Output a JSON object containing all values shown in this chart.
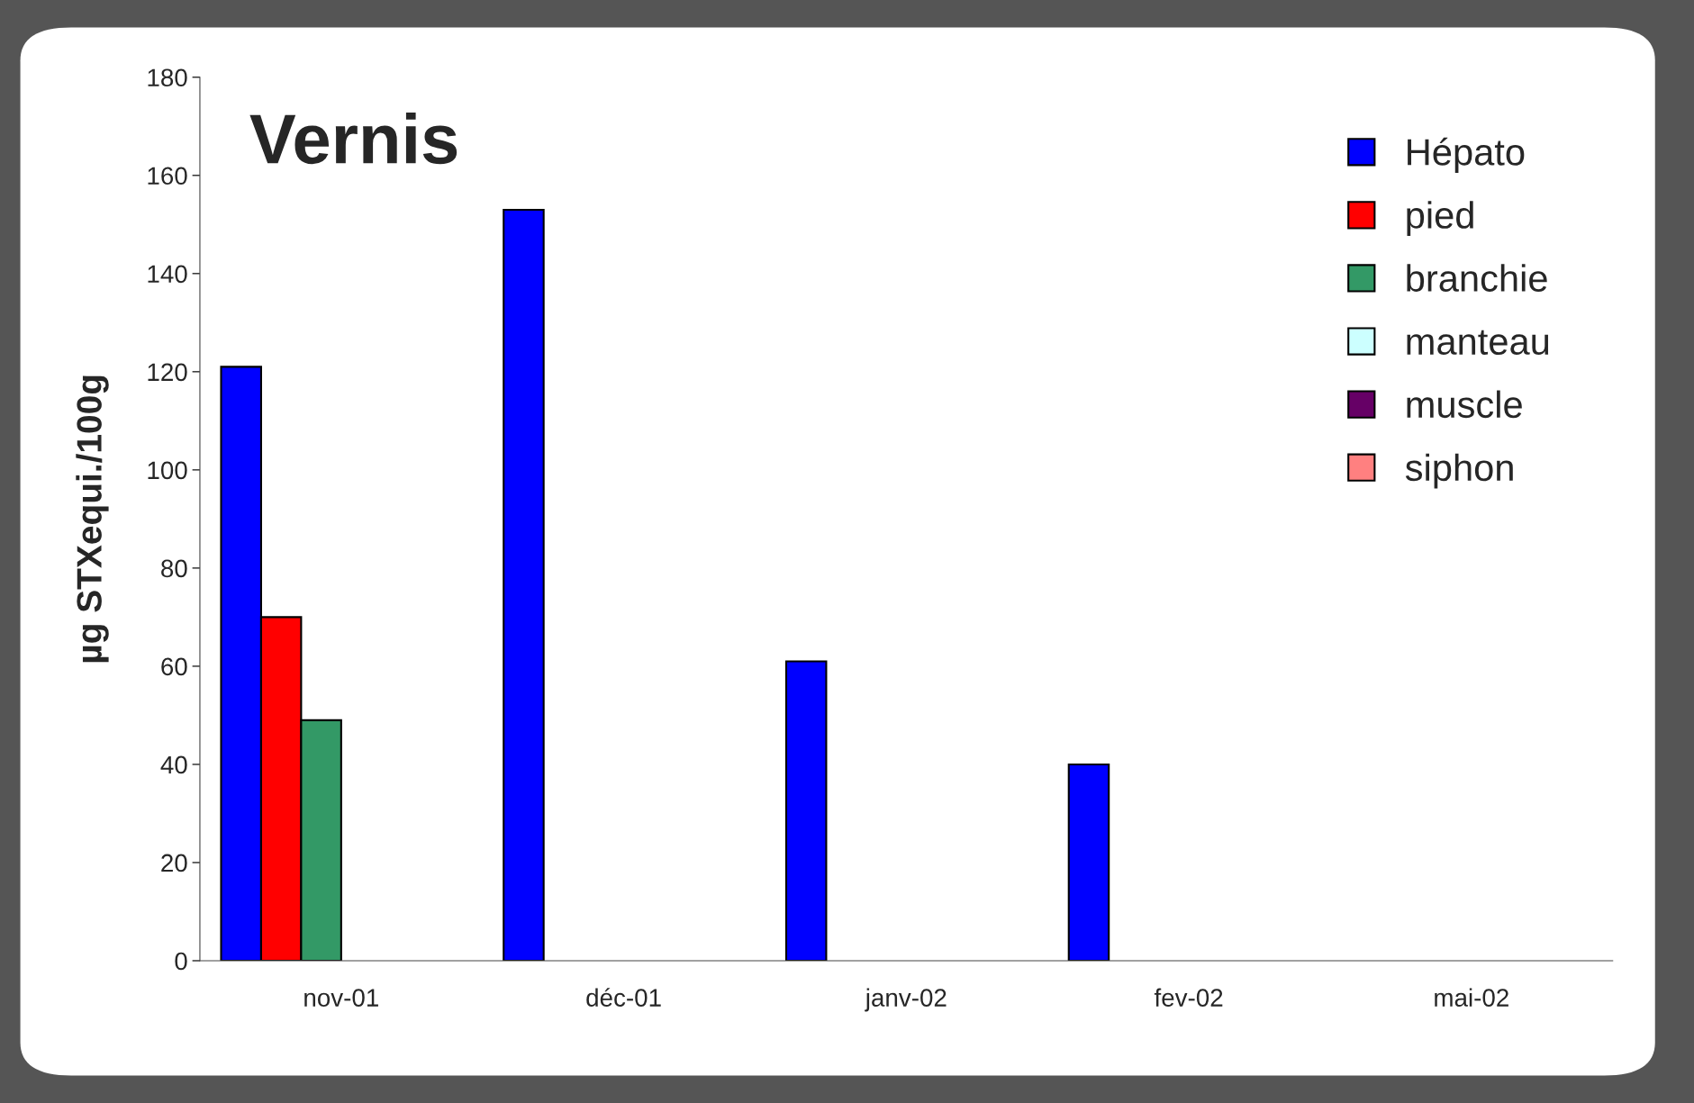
{
  "chart_data": {
    "type": "bar",
    "title": "Vernis",
    "ylabel": "µg STXequi./100g",
    "categories": [
      "nov-01",
      "déc-01",
      "janv-02",
      "fev-02",
      "mai-02"
    ],
    "series": [
      {
        "name": "Hépato",
        "color": "#0000ff",
        "values": [
          121,
          153,
          61,
          40,
          null
        ]
      },
      {
        "name": "pied",
        "color": "#ff0000",
        "values": [
          70,
          null,
          null,
          null,
          null
        ]
      },
      {
        "name": "branchie",
        "color": "#339966",
        "values": [
          49,
          null,
          null,
          null,
          null
        ]
      },
      {
        "name": "manteau",
        "color": "#ccffff",
        "values": [
          null,
          null,
          null,
          null,
          null
        ]
      },
      {
        "name": "muscle",
        "color": "#660066",
        "values": [
          null,
          null,
          null,
          null,
          null
        ]
      },
      {
        "name": "siphon",
        "color": "#ff8080",
        "values": [
          null,
          null,
          null,
          null,
          null
        ]
      }
    ],
    "ylim": [
      0,
      180
    ],
    "yticks": [
      0,
      20,
      40,
      60,
      80,
      100,
      120,
      140,
      160,
      180
    ],
    "grid": false,
    "legend": "top right"
  }
}
